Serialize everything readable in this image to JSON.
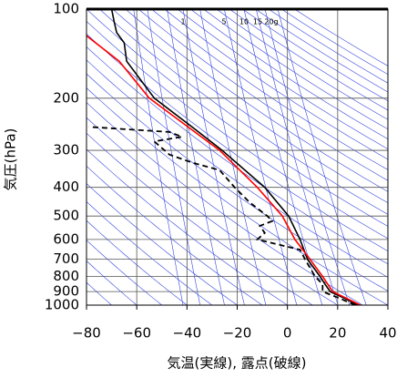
{
  "chart_data": {
    "type": "line",
    "xlabel": "気温(実線), 露点(破線)",
    "ylabel": "気圧(hPa)",
    "xlim": [
      -80,
      40
    ],
    "xticks": [
      {
        "value": -80,
        "label": "−80"
      },
      {
        "value": -60,
        "label": "−60"
      },
      {
        "value": -40,
        "label": "−40"
      },
      {
        "value": -20,
        "label": "−20"
      },
      0,
      20,
      40
    ],
    "ylim": [
      1000,
      100
    ],
    "ylog": true,
    "yticks": [
      100,
      200,
      300,
      400,
      500,
      600,
      700,
      800,
      900,
      1000
    ],
    "grid": true,
    "annotations": [
      "1",
      "5",
      "10",
      "15",
      "20g"
    ],
    "series": [
      {
        "color": "#000000",
        "dash": false,
        "pressure": [
          1000,
          950,
          925,
          900,
          850,
          800,
          700,
          600,
          500,
          400,
          300,
          250,
          200,
          150,
          130,
          120,
          110,
          100
        ],
        "values": [
          28,
          23,
          20,
          17,
          15,
          13,
          8,
          5,
          0.5,
          -9,
          -26,
          -38,
          -53,
          -64,
          -65,
          -68,
          -69,
          -70
        ]
      },
      {
        "color": "#000000",
        "dash": true,
        "pressure": [
          1000,
          950,
          900,
          850,
          800,
          700,
          650,
          600,
          570,
          540,
          520,
          500,
          450,
          400,
          350,
          330,
          310,
          280,
          270,
          260,
          250
        ],
        "values": [
          27,
          21,
          14,
          14,
          11,
          7,
          5,
          -12,
          -9,
          -11,
          -6,
          -8,
          -15,
          -21,
          -27,
          -38,
          -47,
          -53,
          -42,
          -47,
          -79
        ]
      },
      {
        "color": "#ff0000",
        "dash": false,
        "pressure": [
          1000,
          900,
          800,
          700,
          600,
          500,
          400,
          300,
          200,
          150,
          123
        ],
        "values": [
          29,
          18,
          14,
          9,
          3,
          -2,
          -12,
          -27,
          -55,
          -67,
          -80
        ]
      }
    ]
  }
}
